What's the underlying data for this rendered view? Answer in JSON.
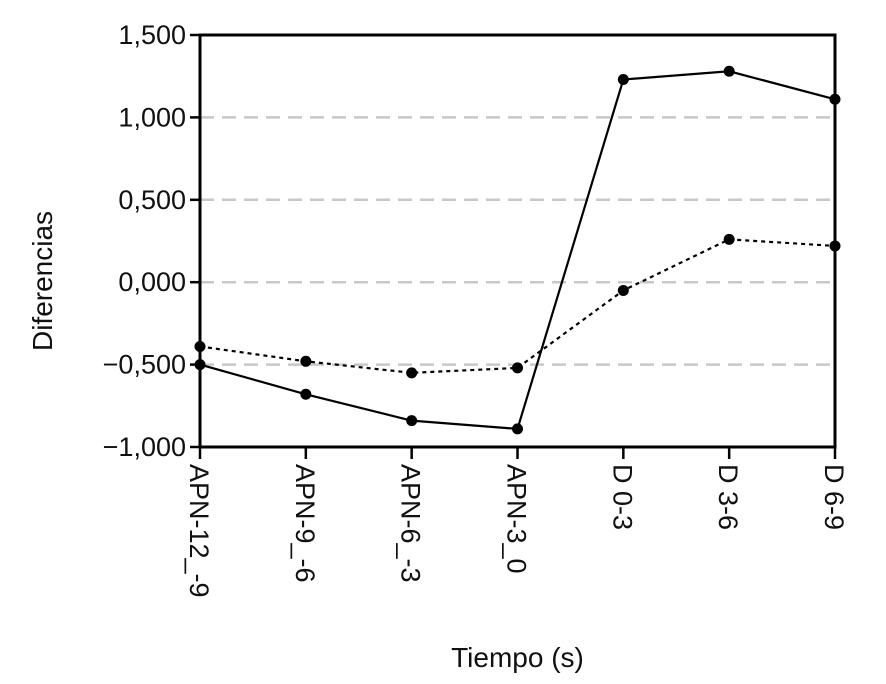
{
  "chart_data": {
    "type": "line",
    "title": "",
    "xlabel": "Tiempo (s)",
    "ylabel": "Diferencias",
    "categories": [
      "APN-12_-9",
      "APN-9_-6",
      "APN-6_-3",
      "APN-3_0",
      "D 0-3",
      "D 3-6",
      "D 6-9"
    ],
    "y_tick_labels": [
      "1,500",
      "1,000",
      "0,500",
      "0,000",
      "−0,500",
      "−1,000"
    ],
    "y_ticks": [
      1.5,
      1.0,
      0.5,
      0.0,
      -0.5,
      -1.0
    ],
    "ylim": [
      -1.0,
      1.5
    ],
    "grid": "horizontal dashed",
    "legend": "none",
    "series": [
      {
        "style": "solid",
        "color": "#000000",
        "values": [
          -0.5,
          -0.68,
          -0.84,
          -0.89,
          1.23,
          1.28,
          1.11
        ]
      },
      {
        "style": "dotted",
        "color": "#000000",
        "values": [
          -0.39,
          -0.48,
          -0.55,
          -0.52,
          -0.05,
          0.26,
          0.22
        ]
      }
    ]
  },
  "colors": {
    "grid": "#c8c8c8",
    "axis": "#000000",
    "text": "#111111"
  }
}
